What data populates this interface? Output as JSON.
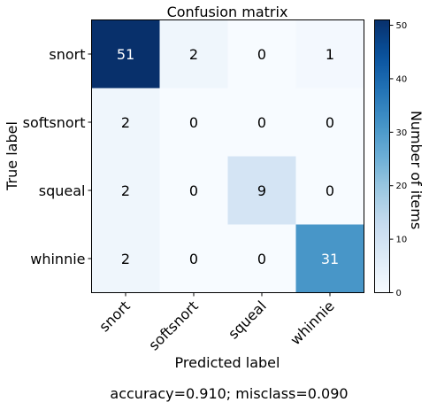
{
  "chart_data": {
    "type": "heatmap",
    "title": "Confusion matrix",
    "xlabel": "Predicted label",
    "ylabel": "True label",
    "x_categories": [
      "snort",
      "softsnort",
      "squeal",
      "whinnie"
    ],
    "y_categories": [
      "snort",
      "softsnort",
      "squeal",
      "whinnie"
    ],
    "values": [
      [
        51,
        2,
        0,
        1
      ],
      [
        2,
        0,
        0,
        0
      ],
      [
        2,
        0,
        9,
        0
      ],
      [
        2,
        0,
        0,
        31
      ]
    ],
    "colorbar": {
      "label": "Number of items",
      "range": [
        0,
        51
      ],
      "ticks": [
        0,
        10,
        20,
        30,
        40,
        50
      ],
      "colormap": "Blues"
    },
    "footer": "accuracy=0.910; misclass=0.090"
  }
}
